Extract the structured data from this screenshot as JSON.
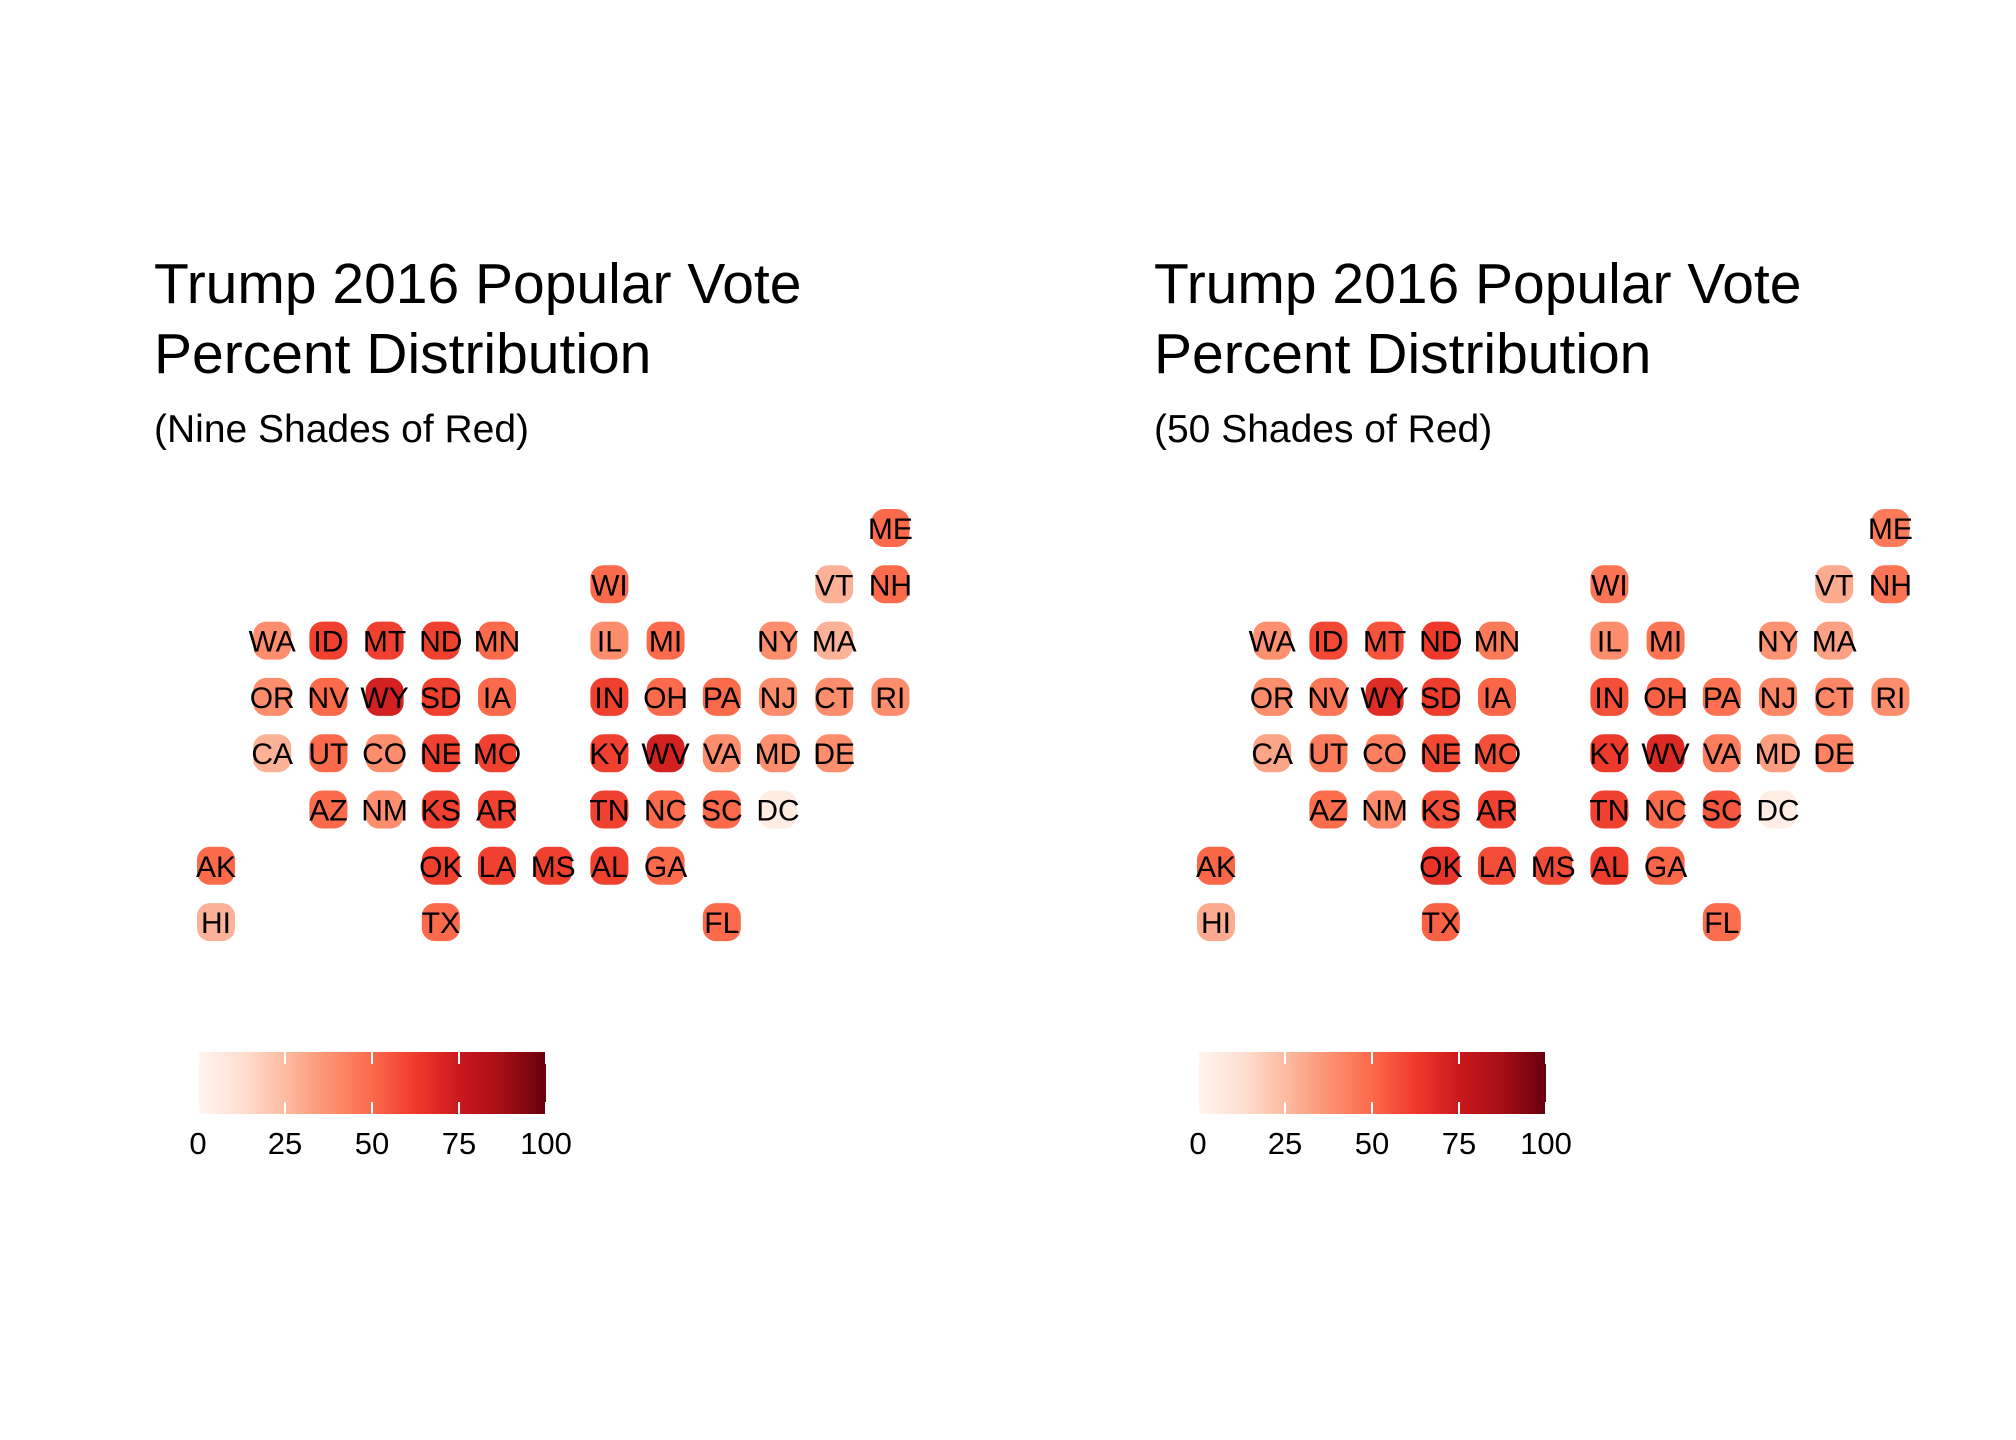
{
  "chart_data": [
    {
      "type": "heatmap",
      "title": "Trump 2016 Popular Vote\nPercent Distribution",
      "title_lines": [
        "Trump 2016 Popular Vote",
        "Percent Distribution"
      ],
      "subtitle": "(Nine Shades of Red)",
      "scale": "binned",
      "bins": 9,
      "legend": {
        "position": "bottom-left",
        "ticks": [
          0,
          25,
          50,
          75,
          100
        ],
        "range": [
          0,
          100
        ]
      },
      "palette": [
        "#fff5f0",
        "#fee0d2",
        "#fcbba1",
        "#fc9272",
        "#fb6a4a",
        "#ef3b2c",
        "#cb181d",
        "#a50f15",
        "#67000d"
      ],
      "states": [
        {
          "abbr": "ME",
          "col": 12,
          "row": 0,
          "value": 45
        },
        {
          "abbr": "WI",
          "col": 7,
          "row": 1,
          "value": 47
        },
        {
          "abbr": "VT",
          "col": 11,
          "row": 1,
          "value": 30
        },
        {
          "abbr": "NH",
          "col": 12,
          "row": 1,
          "value": 47
        },
        {
          "abbr": "WA",
          "col": 1,
          "row": 2,
          "value": 38
        },
        {
          "abbr": "ID",
          "col": 2,
          "row": 2,
          "value": 59
        },
        {
          "abbr": "MT",
          "col": 3,
          "row": 2,
          "value": 56
        },
        {
          "abbr": "ND",
          "col": 4,
          "row": 2,
          "value": 63
        },
        {
          "abbr": "MN",
          "col": 5,
          "row": 2,
          "value": 45
        },
        {
          "abbr": "IL",
          "col": 7,
          "row": 2,
          "value": 39
        },
        {
          "abbr": "MI",
          "col": 8,
          "row": 2,
          "value": 47
        },
        {
          "abbr": "NY",
          "col": 10,
          "row": 2,
          "value": 37
        },
        {
          "abbr": "MA",
          "col": 11,
          "row": 2,
          "value": 33
        },
        {
          "abbr": "OR",
          "col": 1,
          "row": 3,
          "value": 39
        },
        {
          "abbr": "NV",
          "col": 2,
          "row": 3,
          "value": 46
        },
        {
          "abbr": "WY",
          "col": 3,
          "row": 3,
          "value": 68
        },
        {
          "abbr": "SD",
          "col": 4,
          "row": 3,
          "value": 62
        },
        {
          "abbr": "IA",
          "col": 5,
          "row": 3,
          "value": 51
        },
        {
          "abbr": "IN",
          "col": 7,
          "row": 3,
          "value": 57
        },
        {
          "abbr": "OH",
          "col": 8,
          "row": 3,
          "value": 52
        },
        {
          "abbr": "PA",
          "col": 9,
          "row": 3,
          "value": 48
        },
        {
          "abbr": "NJ",
          "col": 10,
          "row": 3,
          "value": 41
        },
        {
          "abbr": "CT",
          "col": 11,
          "row": 3,
          "value": 41
        },
        {
          "abbr": "RI",
          "col": 12,
          "row": 3,
          "value": 39
        },
        {
          "abbr": "CA",
          "col": 1,
          "row": 4,
          "value": 32
        },
        {
          "abbr": "UT",
          "col": 2,
          "row": 4,
          "value": 45
        },
        {
          "abbr": "CO",
          "col": 3,
          "row": 4,
          "value": 43
        },
        {
          "abbr": "NE",
          "col": 4,
          "row": 4,
          "value": 59
        },
        {
          "abbr": "MO",
          "col": 5,
          "row": 4,
          "value": 57
        },
        {
          "abbr": "KY",
          "col": 7,
          "row": 4,
          "value": 63
        },
        {
          "abbr": "WV",
          "col": 8,
          "row": 4,
          "value": 69
        },
        {
          "abbr": "VA",
          "col": 9,
          "row": 4,
          "value": 44
        },
        {
          "abbr": "MD",
          "col": 10,
          "row": 4,
          "value": 34
        },
        {
          "abbr": "DE",
          "col": 11,
          "row": 4,
          "value": 42
        },
        {
          "abbr": "AZ",
          "col": 2,
          "row": 5,
          "value": 49
        },
        {
          "abbr": "NM",
          "col": 3,
          "row": 5,
          "value": 40
        },
        {
          "abbr": "KS",
          "col": 4,
          "row": 5,
          "value": 57
        },
        {
          "abbr": "AR",
          "col": 5,
          "row": 5,
          "value": 61
        },
        {
          "abbr": "TN",
          "col": 7,
          "row": 5,
          "value": 61
        },
        {
          "abbr": "NC",
          "col": 8,
          "row": 5,
          "value": 50
        },
        {
          "abbr": "SC",
          "col": 9,
          "row": 5,
          "value": 55
        },
        {
          "abbr": "DC",
          "col": 10,
          "row": 5,
          "value": 4
        },
        {
          "abbr": "AK",
          "col": 0,
          "row": 6,
          "value": 51
        },
        {
          "abbr": "OK",
          "col": 4,
          "row": 6,
          "value": 65
        },
        {
          "abbr": "LA",
          "col": 5,
          "row": 6,
          "value": 58
        },
        {
          "abbr": "MS",
          "col": 6,
          "row": 6,
          "value": 58
        },
        {
          "abbr": "AL",
          "col": 7,
          "row": 6,
          "value": 62
        },
        {
          "abbr": "GA",
          "col": 8,
          "row": 6,
          "value": 51
        },
        {
          "abbr": "HI",
          "col": 0,
          "row": 7,
          "value": 30
        },
        {
          "abbr": "TX",
          "col": 4,
          "row": 7,
          "value": 52
        },
        {
          "abbr": "FL",
          "col": 9,
          "row": 7,
          "value": 49
        }
      ]
    },
    {
      "type": "heatmap",
      "title": "Trump 2016 Popular Vote\nPercent Distribution",
      "title_lines": [
        "Trump 2016 Popular Vote",
        "Percent Distribution"
      ],
      "subtitle": "(50 Shades of Red)",
      "scale": "continuous",
      "bins": 50,
      "legend": {
        "position": "bottom-left",
        "ticks": [
          0,
          25,
          50,
          75,
          100
        ],
        "range": [
          0,
          100
        ]
      },
      "palette": [
        "#fff5f0",
        "#fee0d2",
        "#fcbba1",
        "#fc9272",
        "#fb6a4a",
        "#ef3b2c",
        "#cb181d",
        "#a50f15",
        "#67000d"
      ],
      "states": [
        {
          "abbr": "ME",
          "col": 12,
          "row": 0,
          "value": 45
        },
        {
          "abbr": "WI",
          "col": 7,
          "row": 1,
          "value": 47
        },
        {
          "abbr": "VT",
          "col": 11,
          "row": 1,
          "value": 30
        },
        {
          "abbr": "NH",
          "col": 12,
          "row": 1,
          "value": 47
        },
        {
          "abbr": "WA",
          "col": 1,
          "row": 2,
          "value": 38
        },
        {
          "abbr": "ID",
          "col": 2,
          "row": 2,
          "value": 59
        },
        {
          "abbr": "MT",
          "col": 3,
          "row": 2,
          "value": 56
        },
        {
          "abbr": "ND",
          "col": 4,
          "row": 2,
          "value": 63
        },
        {
          "abbr": "MN",
          "col": 5,
          "row": 2,
          "value": 45
        },
        {
          "abbr": "IL",
          "col": 7,
          "row": 2,
          "value": 39
        },
        {
          "abbr": "MI",
          "col": 8,
          "row": 2,
          "value": 47
        },
        {
          "abbr": "NY",
          "col": 10,
          "row": 2,
          "value": 37
        },
        {
          "abbr": "MA",
          "col": 11,
          "row": 2,
          "value": 33
        },
        {
          "abbr": "OR",
          "col": 1,
          "row": 3,
          "value": 39
        },
        {
          "abbr": "NV",
          "col": 2,
          "row": 3,
          "value": 46
        },
        {
          "abbr": "WY",
          "col": 3,
          "row": 3,
          "value": 68
        },
        {
          "abbr": "SD",
          "col": 4,
          "row": 3,
          "value": 62
        },
        {
          "abbr": "IA",
          "col": 5,
          "row": 3,
          "value": 51
        },
        {
          "abbr": "IN",
          "col": 7,
          "row": 3,
          "value": 57
        },
        {
          "abbr": "OH",
          "col": 8,
          "row": 3,
          "value": 52
        },
        {
          "abbr": "PA",
          "col": 9,
          "row": 3,
          "value": 48
        },
        {
          "abbr": "NJ",
          "col": 10,
          "row": 3,
          "value": 41
        },
        {
          "abbr": "CT",
          "col": 11,
          "row": 3,
          "value": 41
        },
        {
          "abbr": "RI",
          "col": 12,
          "row": 3,
          "value": 39
        },
        {
          "abbr": "CA",
          "col": 1,
          "row": 4,
          "value": 32
        },
        {
          "abbr": "UT",
          "col": 2,
          "row": 4,
          "value": 45
        },
        {
          "abbr": "CO",
          "col": 3,
          "row": 4,
          "value": 43
        },
        {
          "abbr": "NE",
          "col": 4,
          "row": 4,
          "value": 59
        },
        {
          "abbr": "MO",
          "col": 5,
          "row": 4,
          "value": 57
        },
        {
          "abbr": "KY",
          "col": 7,
          "row": 4,
          "value": 63
        },
        {
          "abbr": "WV",
          "col": 8,
          "row": 4,
          "value": 69
        },
        {
          "abbr": "VA",
          "col": 9,
          "row": 4,
          "value": 44
        },
        {
          "abbr": "MD",
          "col": 10,
          "row": 4,
          "value": 34
        },
        {
          "abbr": "DE",
          "col": 11,
          "row": 4,
          "value": 42
        },
        {
          "abbr": "AZ",
          "col": 2,
          "row": 5,
          "value": 49
        },
        {
          "abbr": "NM",
          "col": 3,
          "row": 5,
          "value": 40
        },
        {
          "abbr": "KS",
          "col": 4,
          "row": 5,
          "value": 57
        },
        {
          "abbr": "AR",
          "col": 5,
          "row": 5,
          "value": 61
        },
        {
          "abbr": "TN",
          "col": 7,
          "row": 5,
          "value": 61
        },
        {
          "abbr": "NC",
          "col": 8,
          "row": 5,
          "value": 50
        },
        {
          "abbr": "SC",
          "col": 9,
          "row": 5,
          "value": 55
        },
        {
          "abbr": "DC",
          "col": 10,
          "row": 5,
          "value": 4
        },
        {
          "abbr": "AK",
          "col": 0,
          "row": 6,
          "value": 51
        },
        {
          "abbr": "OK",
          "col": 4,
          "row": 6,
          "value": 65
        },
        {
          "abbr": "LA",
          "col": 5,
          "row": 6,
          "value": 58
        },
        {
          "abbr": "MS",
          "col": 6,
          "row": 6,
          "value": 58
        },
        {
          "abbr": "AL",
          "col": 7,
          "row": 6,
          "value": 62
        },
        {
          "abbr": "GA",
          "col": 8,
          "row": 6,
          "value": 51
        },
        {
          "abbr": "HI",
          "col": 0,
          "row": 7,
          "value": 30
        },
        {
          "abbr": "TX",
          "col": 4,
          "row": 7,
          "value": 52
        },
        {
          "abbr": "FL",
          "col": 9,
          "row": 7,
          "value": 49
        }
      ]
    }
  ]
}
